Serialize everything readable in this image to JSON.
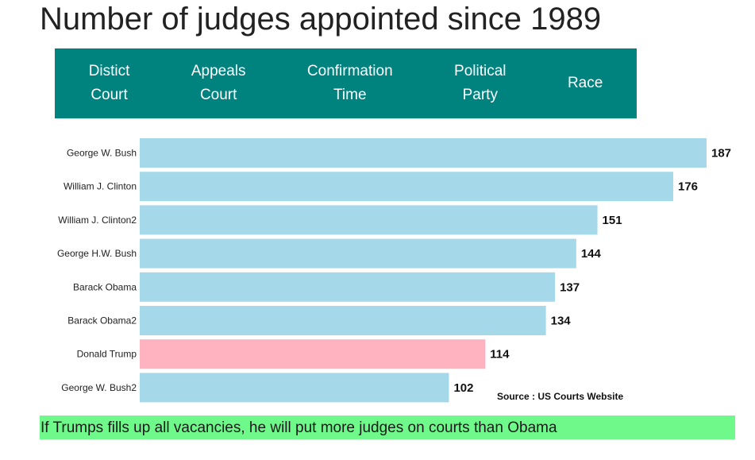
{
  "title": "Number of judges appointed since 1989",
  "tabs": [
    {
      "label": "Distict\nCourt"
    },
    {
      "label": "Appeals\nCourt"
    },
    {
      "label": "Confirmation\nTime"
    },
    {
      "label": "Political\nParty"
    },
    {
      "label": "Race"
    }
  ],
  "chart_data": {
    "type": "bar",
    "orientation": "horizontal",
    "categories": [
      "George W. Bush",
      "William J. Clinton",
      "William J. Clinton2",
      "George H.W. Bush",
      "Barack Obama",
      "Barack Obama2",
      "Donald Trump",
      "George W. Bush2"
    ],
    "values": [
      187,
      176,
      151,
      144,
      137,
      134,
      114,
      102
    ],
    "colors": [
      "#a5d8e8",
      "#a5d8e8",
      "#a5d8e8",
      "#a5d8e8",
      "#a5d8e8",
      "#a5d8e8",
      "#ffb3c1",
      "#a5d8e8"
    ],
    "xlim": [
      0,
      187
    ],
    "data_labels": true,
    "title": "",
    "xlabel": "",
    "ylabel": ""
  },
  "source": "Source : US Courts Website",
  "footnote": "If Trumps fills up all vacancies, he will put more judges on courts than Obama"
}
